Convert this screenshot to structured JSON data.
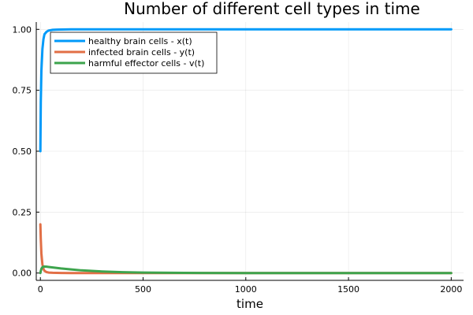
{
  "chart_data": {
    "type": "line",
    "title": "Number of different cell types in time",
    "xlabel": "time",
    "ylabel": "",
    "xlim": [
      -20,
      2060
    ],
    "ylim": [
      -0.03,
      1.03
    ],
    "x_ticks": [
      0,
      500,
      1000,
      1500,
      2000
    ],
    "x_tick_labels": [
      "0",
      "500",
      "1000",
      "1500",
      "2000"
    ],
    "y_ticks": [
      0,
      0.25,
      0.5,
      0.75,
      1.0
    ],
    "y_tick_labels": [
      "0.00",
      "0.25",
      "0.50",
      "0.75",
      "1.00"
    ],
    "grid": true,
    "legend_position": "top-left",
    "series": [
      {
        "name": "healthy brain cells - x(t)",
        "color": "#009af9",
        "x": [
          0,
          2,
          5,
          10,
          15,
          20,
          30,
          40,
          60,
          80,
          100,
          150,
          200,
          300,
          500,
          1000,
          1500,
          2000
        ],
        "values": [
          0.5,
          0.7,
          0.83,
          0.92,
          0.96,
          0.98,
          0.99,
          0.995,
          0.998,
          0.999,
          0.9995,
          1.0,
          1.0,
          1.0,
          1.0,
          1.0,
          1.0,
          1.0
        ]
      },
      {
        "name": "infected brain cells - y(t)",
        "color": "#e26f46",
        "x": [
          0,
          2,
          5,
          10,
          15,
          20,
          30,
          40,
          60,
          80,
          100,
          150,
          200,
          300,
          500,
          1000,
          1500,
          2000
        ],
        "values": [
          0.2,
          0.14,
          0.08,
          0.035,
          0.017,
          0.009,
          0.004,
          0.002,
          0.001,
          0.0005,
          0.0003,
          0.0,
          0.0,
          0.0,
          0.0,
          0.0,
          0.0,
          0.0
        ]
      },
      {
        "name": "harmful effector cells - v(t)",
        "color": "#3da44d",
        "x": [
          0,
          2,
          5,
          10,
          15,
          20,
          30,
          40,
          60,
          80,
          100,
          150,
          200,
          300,
          400,
          500,
          700,
          1000,
          1500,
          2000
        ],
        "values": [
          0.0,
          0.008,
          0.017,
          0.024,
          0.026,
          0.0265,
          0.026,
          0.025,
          0.023,
          0.021,
          0.019,
          0.015,
          0.011,
          0.0065,
          0.0035,
          0.002,
          0.0006,
          0.0001,
          0.0,
          0.0
        ]
      }
    ]
  }
}
